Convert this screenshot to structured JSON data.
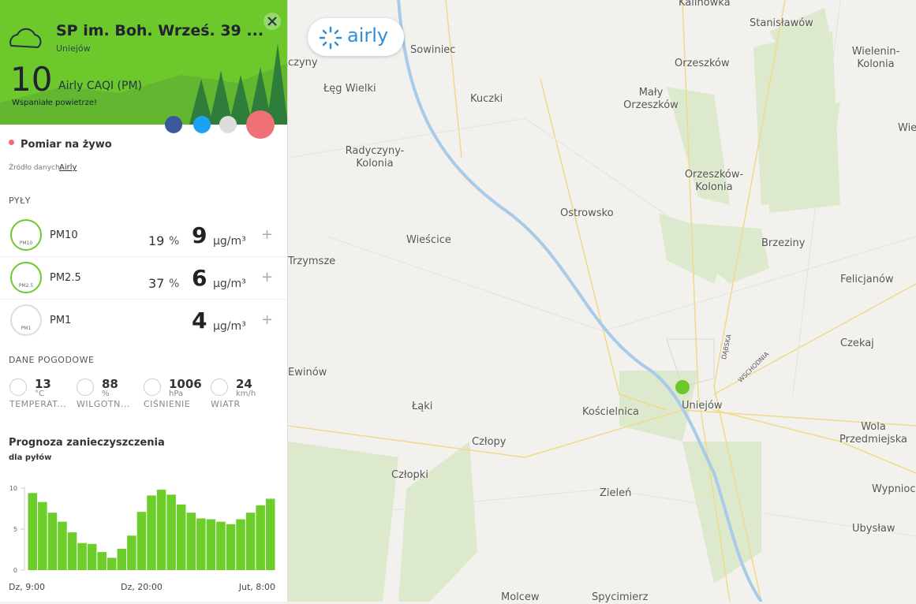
{
  "logo": "airly",
  "header": {
    "station": "SP im. Boh. Wrześ. 39 ...",
    "city": "Uniejów",
    "caqi": 10,
    "caqi_label": "Airly CAQI (PM)",
    "verdict": "Wspaniałe powietrze!"
  },
  "live": "Pomiar na żywo",
  "source_label": "Źródło danych:",
  "source": "Airly",
  "dust": {
    "title": "PYŁY",
    "unit": "µg/m³",
    "percent_unit": "%",
    "rows": [
      {
        "name": "PM10",
        "percent": 19,
        "value": 9,
        "icon": "PM10"
      },
      {
        "name": "PM2.5",
        "percent": 37,
        "value": 6,
        "icon": "PM2.5"
      },
      {
        "name": "PM1",
        "value": 4,
        "icon": "PM1"
      }
    ]
  },
  "weather": {
    "title": "DANE POGODOWE",
    "items": [
      {
        "value": 13,
        "unit": "°C",
        "label": "TEMPERAT..."
      },
      {
        "value": 88,
        "unit": "%",
        "label": "WILGOTN..."
      },
      {
        "value": 1006,
        "unit": "hPa",
        "label": "CIŚNIENIE"
      },
      {
        "value": 24,
        "unit": "km/h",
        "label": "WIATR"
      }
    ]
  },
  "chart_data": {
    "type": "bar",
    "title": "Prognoza zanieczyszczenia",
    "subtitle": "dla pyłów",
    "color": "#6dcd2a",
    "categories": [
      "Dz, 9:00",
      null,
      null,
      null,
      null,
      null,
      null,
      null,
      null,
      null,
      null,
      "Dz, 20:00",
      null,
      null,
      null,
      null,
      null,
      null,
      null,
      null,
      null,
      null,
      null,
      "Jut, 8:00",
      null
    ],
    "values": [
      9.4,
      8.3,
      7.0,
      5.9,
      4.6,
      3.3,
      3.2,
      2.2,
      1.5,
      2.6,
      4.2,
      7.1,
      9.1,
      9.8,
      9.2,
      8.0,
      7.0,
      6.3,
      6.2,
      5.9,
      5.6,
      6.2,
      7.0,
      7.9,
      8.7
    ],
    "ylim": [
      0,
      10
    ],
    "yticks": [
      0,
      5,
      10
    ]
  },
  "map": {
    "places": [
      "Kalinowka",
      "Stanisławów",
      "Sowiniec",
      "Orzeszków",
      "Wielenin-Kolonia",
      "Łęg Wielki",
      "Kuczki",
      "Mały Orzeszków",
      "Radyczyny-Kolonia",
      "Orzeszków-Kolonia",
      "Ostrowsko",
      "Wieścice",
      "Brzeziny",
      "Trzymsze",
      "Felicjanów",
      "Czekaj",
      "Ewinów",
      "Łąki",
      "Kościelnica",
      "Uniejów",
      "Wola Przedmiejska",
      "Człopy",
      "Człopki",
      "Zieleń",
      "Wypnioc",
      "Ubysław",
      "Molcew",
      "Spycimierz",
      "DĄBSKA",
      "WSCHODNIA",
      "czyny",
      "Wie"
    ]
  }
}
